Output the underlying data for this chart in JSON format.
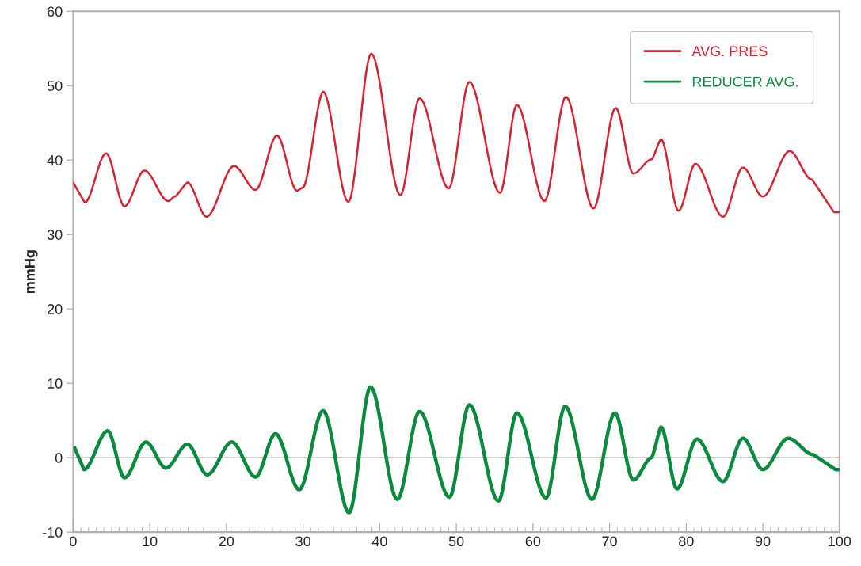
{
  "chart_data": {
    "type": "line",
    "ylabel": "mmHg",
    "xlim": [
      0,
      100
    ],
    "ylim": [
      -10,
      60
    ],
    "xticks": [
      0,
      10,
      20,
      30,
      40,
      50,
      60,
      70,
      80,
      90,
      100
    ],
    "yticks": [
      {
        "value": -10,
        "label": "-10"
      },
      0,
      10,
      20,
      30,
      40,
      50,
      60
    ],
    "grid": false,
    "legend": "top right",
    "marker": "none",
    "line_style": "solid",
    "ref_lines": [
      {
        "axis": "y",
        "value": 0,
        "color": "#a0a0a0"
      }
    ],
    "series": [
      {
        "name": "AVG. PRES",
        "color": "#d7212f",
        "x": [
          0,
          1.5,
          4.3,
          6.7,
          9.3,
          12.4,
          13.3,
          14.9,
          17.4,
          21,
          23.8,
          26.6,
          29.2,
          30,
          32.6,
          35.9,
          38.9,
          42.7,
          45.2,
          49,
          51.7,
          55.7,
          57.9,
          61.5,
          64.3,
          67.9,
          70.8,
          73.1,
          75.5,
          76.7,
          79,
          81.2,
          84.8,
          87.4,
          90,
          93.5,
          96.4,
          99.3,
          100
        ],
        "values": [
          37,
          34.3,
          40.9,
          33.8,
          38.6,
          34.5,
          35.1,
          37,
          32.4,
          39.2,
          36,
          43.3,
          35.9,
          36.3,
          49.2,
          34.4,
          54.3,
          35.3,
          48.3,
          36.2,
          50.5,
          35.6,
          47.4,
          34.5,
          48.5,
          33.5,
          47,
          38.2,
          40.1,
          42.8,
          33.2,
          39.5,
          32.4,
          39,
          35.1,
          41.2,
          37.4,
          33,
          33
        ]
      },
      {
        "name": "REDUCER AVG.",
        "color": "#0a8a3e",
        "x": [
          0.2,
          1.4,
          4.5,
          6.7,
          9.5,
          12.1,
          14.9,
          17.5,
          20.7,
          23.8,
          26.4,
          29.5,
          32.6,
          36,
          38.8,
          42.3,
          45.2,
          49.1,
          51.7,
          55.5,
          57.9,
          61.7,
          64.2,
          67.7,
          70.7,
          73.1,
          75.5,
          76.7,
          78.8,
          81.4,
          84.8,
          87.4,
          90,
          93.3,
          96.6,
          99.5,
          100
        ],
        "values": [
          1.3,
          -1.6,
          3.6,
          -2.7,
          2.1,
          -1.4,
          1.8,
          -2.3,
          2.1,
          -2.6,
          3.2,
          -4.3,
          6.3,
          -7.4,
          9.5,
          -5.6,
          6.2,
          -5.3,
          7.1,
          -5.8,
          6,
          -5.4,
          6.9,
          -5.6,
          6,
          -3,
          0,
          4.1,
          -4.2,
          2.5,
          -3.2,
          2.6,
          -1.6,
          2.6,
          0.4,
          -1.6,
          -1.6
        ]
      }
    ]
  }
}
